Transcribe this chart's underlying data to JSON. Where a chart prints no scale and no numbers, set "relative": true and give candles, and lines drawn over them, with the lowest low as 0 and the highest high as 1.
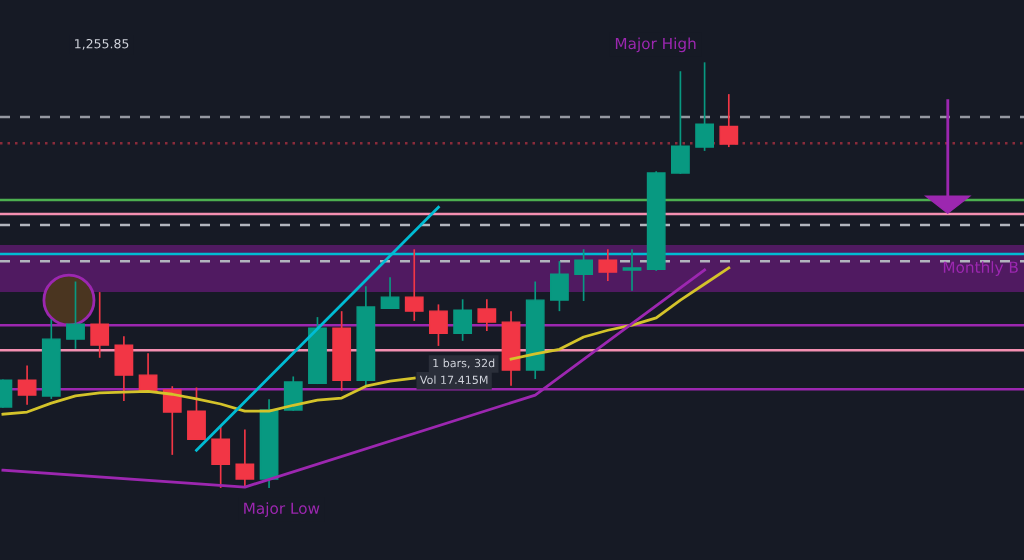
{
  "chart_data": {
    "type": "candlestick",
    "relative": true,
    "categories": [
      null,
      null,
      null,
      null,
      null,
      null,
      null,
      null,
      null,
      null,
      null,
      null,
      null,
      null,
      null,
      null,
      null,
      null,
      null,
      null,
      null,
      null,
      null,
      null,
      null,
      null,
      null,
      null,
      null,
      null,
      null,
      null,
      null,
      null,
      null,
      null,
      null,
      null,
      null,
      null,
      null,
      null,
      null
    ],
    "ohlc": [
      [
        0.189,
        0.252,
        0.189,
        0.252
      ],
      [
        0.252,
        0.285,
        0.196,
        0.217
      ],
      [
        0.215,
        0.394,
        0.21,
        0.349
      ],
      [
        0.349,
        0.483,
        0.328,
        0.384
      ],
      [
        0.384,
        0.458,
        0.307,
        0.335
      ],
      [
        0.335,
        0.354,
        0.205,
        0.264
      ],
      [
        0.264,
        0.314,
        0.224,
        0.226
      ],
      [
        0.229,
        0.236,
        0.078,
        0.177
      ],
      [
        0.179,
        0.233,
        0.113,
        0.113
      ],
      [
        0.113,
        0.142,
        0.0,
        0.054
      ],
      [
        0.054,
        0.134,
        0.0,
        0.019
      ],
      [
        0.019,
        0.205,
        0.0,
        0.182
      ],
      [
        0.182,
        0.259,
        0.182,
        0.248
      ],
      [
        0.245,
        0.399,
        0.245,
        0.375
      ],
      [
        0.375,
        0.413,
        0.229,
        0.252
      ],
      [
        0.252,
        0.472,
        0.241,
        0.425
      ],
      [
        0.422,
        0.493,
        0.422,
        0.448
      ],
      [
        0.448,
        0.559,
        0.394,
        0.415
      ],
      [
        0.415,
        0.429,
        0.335,
        0.363
      ],
      [
        0.363,
        0.441,
        0.347,
        0.417
      ],
      [
        0.42,
        0.441,
        0.37,
        0.389
      ],
      [
        0.389,
        0.413,
        0.241,
        0.276
      ],
      [
        0.276,
        0.483,
        0.257,
        0.441
      ],
      [
        0.441,
        0.531,
        0.417,
        0.502
      ],
      [
        0.502,
        0.559,
        0.441,
        0.535
      ],
      [
        0.535,
        0.559,
        0.488,
        0.507
      ],
      [
        0.512,
        0.559,
        0.465,
        0.517
      ],
      [
        0.514,
        0.743,
        0.512,
        0.741
      ],
      [
        0.741,
        0.979,
        0.741,
        0.804
      ],
      [
        0.802,
        1.0,
        0.795,
        0.856
      ],
      [
        0.851,
        0.925,
        0.804,
        0.809
      ],
      null,
      null,
      null,
      null,
      null,
      null,
      null,
      null,
      null,
      null,
      null,
      null
    ],
    "colors": [
      "#089981",
      "#f23645",
      "#089981",
      "#089981",
      "#f23645",
      "#f23645",
      "#f23645",
      "#f23645",
      "#f23645",
      "#f23645",
      "#f23645",
      "#089981",
      "#089981",
      "#089981",
      "#f23645",
      "#089981",
      "#089981",
      "#f23645",
      "#f23645",
      "#089981",
      "#f23645",
      "#f23645",
      "#089981",
      "#089981",
      "#089981",
      "#f23645",
      "#089981",
      "#089981",
      "#089981",
      "#089981",
      "#f23645",
      null,
      null,
      null,
      null,
      null,
      null,
      null,
      null,
      null,
      null,
      null,
      null
    ],
    "series": [
      {
        "type": "line",
        "color": "#d4c32a",
        "values": [
          0.172,
          0.177,
          0.198,
          0.215,
          0.222,
          0.224,
          0.226,
          0.219,
          0.208,
          0.196,
          0.179,
          0.179,
          0.193,
          0.205,
          0.21,
          0.238,
          0.25,
          0.257,
          null,
          null,
          null,
          0.302,
          0.314,
          0.325,
          0.354,
          0.37,
          0.382,
          0.399,
          0.441,
          0.479,
          0.517,
          null,
          null,
          null,
          null,
          null,
          null,
          null,
          null,
          null,
          null,
          null,
          null
        ]
      },
      {
        "type": "line",
        "color": "#9c27b0",
        "values": [
          0.04,
          null,
          null,
          null,
          null,
          null,
          null,
          null,
          null,
          null,
          0.0,
          null,
          null,
          null,
          null,
          null,
          null,
          null,
          null,
          null,
          null,
          null,
          0.217,
          null,
          null,
          null,
          null,
          null,
          null,
          0.512,
          null,
          null,
          null,
          null,
          null,
          null,
          null,
          null,
          null,
          null,
          null,
          null,
          null
        ]
      },
      {
        "type": "line",
        "color": "#00bcd4",
        "values": [
          null,
          null,
          null,
          null,
          null,
          null,
          null,
          null,
          0.087,
          null,
          null,
          null,
          null,
          null,
          null,
          null,
          null,
          null,
          0.66,
          null,
          null,
          null,
          null,
          null,
          null,
          null,
          null,
          null,
          null,
          null,
          null,
          null,
          null,
          null,
          null,
          null,
          null,
          null,
          null,
          null,
          null,
          null,
          null
        ]
      }
    ],
    "ref_lines": [
      {
        "axis": "y",
        "value": 0.873,
        "color": "#9598a1",
        "line_style": "dashed"
      },
      {
        "axis": "y",
        "value": 0.811,
        "color": "#8a2b3a",
        "line_style": "dotted"
      },
      {
        "axis": "y",
        "value": 0.677,
        "color": "#4caf50",
        "line_style": "solid"
      },
      {
        "axis": "y",
        "value": 0.644,
        "color": "#f48fb1",
        "line_style": "solid"
      },
      {
        "axis": "y",
        "value": 0.618,
        "color": "#b2b5be",
        "line_style": "dashed"
      },
      {
        "axis": "y",
        "value": 0.55,
        "color": "#00bcd4",
        "line_style": "solid"
      },
      {
        "axis": "y",
        "value": 0.533,
        "color": "#b2b5be",
        "line_style": "dashed"
      },
      {
        "axis": "y",
        "value": 0.382,
        "color": "#9c27b0",
        "line_style": "solid"
      },
      {
        "axis": "y",
        "value": 0.323,
        "color": "#f48fb1",
        "line_style": "solid"
      },
      {
        "axis": "y",
        "value": 0.231,
        "color": "#9c27b0",
        "line_style": "solid"
      }
    ],
    "bands": [
      {
        "axis": "y",
        "from": 0.46,
        "to": 0.571,
        "label": "Monthly B",
        "color": "#6a1b7a"
      }
    ],
    "annotations": [
      "1,255.85",
      "Major High",
      "Major Low",
      "1 bars, 32d",
      "Vol 17.415M"
    ]
  }
}
